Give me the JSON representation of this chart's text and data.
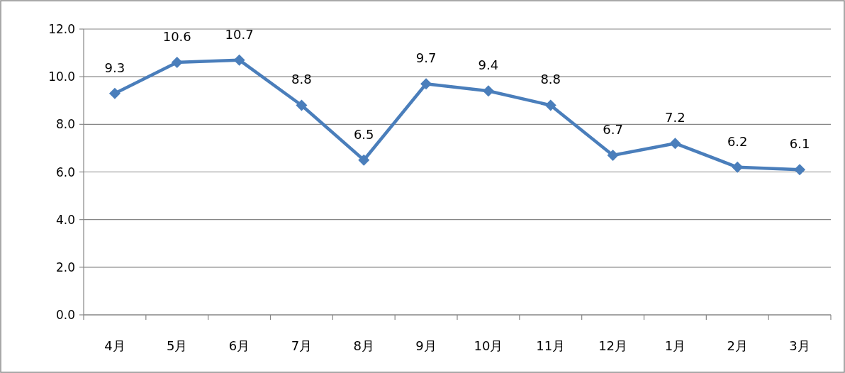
{
  "chart_data": {
    "type": "line",
    "categories": [
      "4月",
      "5月",
      "6月",
      "7月",
      "8月",
      "9月",
      "10月",
      "11月",
      "12月",
      "1月",
      "2月",
      "3月"
    ],
    "series": [
      {
        "color": "#4a7ebb",
        "values": [
          9.3,
          10.6,
          10.7,
          8.8,
          6.5,
          9.7,
          9.4,
          8.8,
          6.7,
          7.2,
          6.2,
          6.1
        ]
      }
    ],
    "ylim": [
      0,
      12
    ],
    "yticks": [
      {
        "value": 0,
        "label": "0.0"
      },
      {
        "value": 2,
        "label": "2.0"
      },
      {
        "value": 4,
        "label": "4.0"
      },
      {
        "value": 6,
        "label": "6.0"
      },
      {
        "value": 8,
        "label": "8.0"
      },
      {
        "value": 10,
        "label": "10.0"
      },
      {
        "value": 12,
        "label": "12.0"
      }
    ],
    "grid": "y",
    "marker": "diamond",
    "line_style": "solid",
    "data_labels": true
  }
}
